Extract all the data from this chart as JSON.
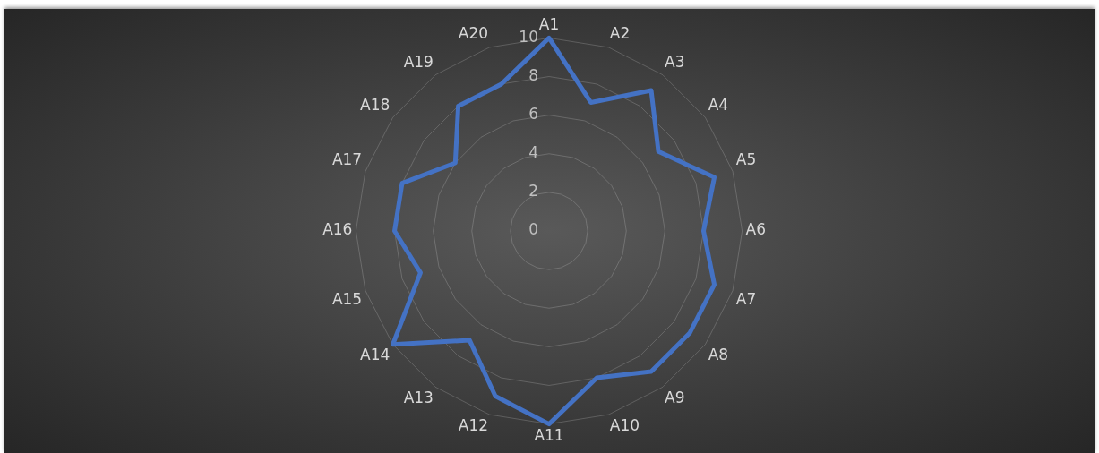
{
  "chart_data": {
    "type": "radar",
    "categories": [
      "A1",
      "A2",
      "A3",
      "A4",
      "A5",
      "A6",
      "A7",
      "A8",
      "A9",
      "A10",
      "A11",
      "A12",
      "A13",
      "A14",
      "A15",
      "A16",
      "A17",
      "A18",
      "A19",
      "A20"
    ],
    "series": [
      {
        "color": "#4472c4",
        "values": [
          10,
          7,
          9,
          7,
          9,
          8,
          9,
          9,
          9,
          8,
          10,
          9,
          7,
          10,
          7,
          8,
          8,
          6,
          8,
          8
        ]
      }
    ],
    "ylim": [
      0,
      10
    ],
    "yticks": [
      0,
      2,
      4,
      6,
      8,
      10
    ],
    "grid": true,
    "legend": false,
    "marker": "none",
    "line_style": "solid"
  }
}
